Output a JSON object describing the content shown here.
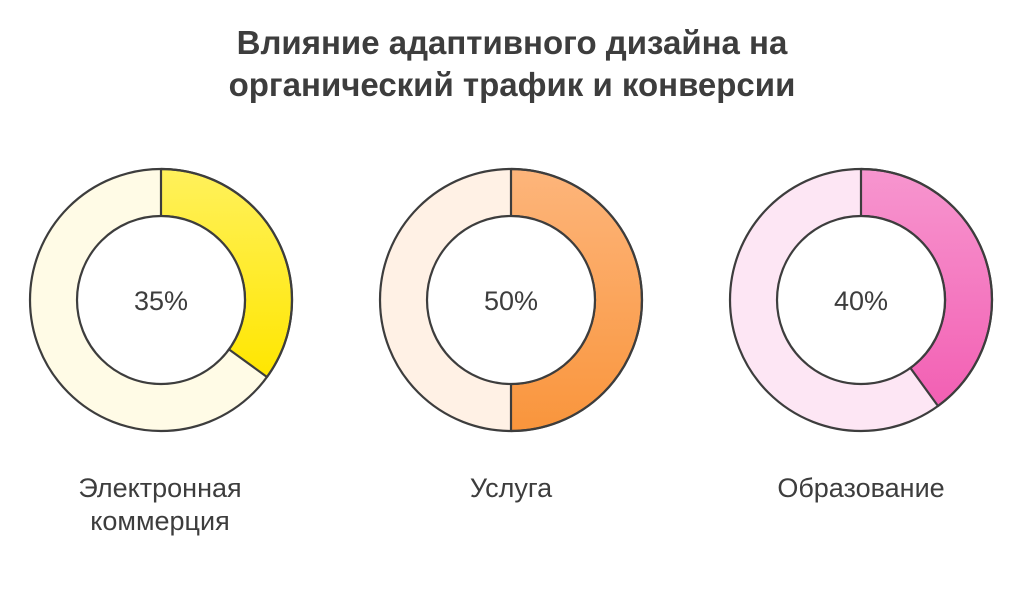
{
  "chart_data": {
    "type": "pie",
    "title_lines": [
      "Влияние адаптивного дизайна на",
      "органический трафик и конверсии"
    ],
    "categories": [
      "Электронная коммерция",
      "Услуга",
      "Образование"
    ],
    "category_label_lines": [
      [
        "Электронная",
        "коммерция"
      ],
      [
        "Услуга"
      ],
      [
        "Образование"
      ]
    ],
    "values": [
      35,
      50,
      40
    ],
    "value_labels": [
      "35%",
      "50%",
      "40%"
    ],
    "colors": {
      "fill_light": [
        "#fffbe6",
        "#fff1e5",
        "#fde6f4"
      ],
      "gradient_start": [
        "#fff15c",
        "#fdb57b",
        "#f796cf"
      ],
      "gradient_end": [
        "#ffe600",
        "#f9953c",
        "#f25fb3"
      ],
      "outline": "#3d3d3d",
      "text": "#3d3d3d"
    }
  }
}
